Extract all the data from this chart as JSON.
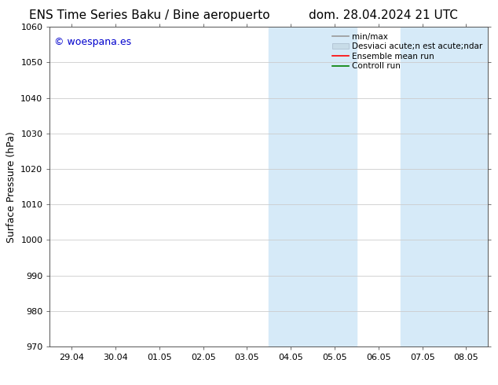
{
  "title_left": "ENS Time Series Baku / Bine aeropuerto",
  "title_right": "dom. 28.04.2024 21 UTC",
  "ylabel": "Surface Pressure (hPa)",
  "ylim": [
    970,
    1060
  ],
  "yticks": [
    970,
    980,
    990,
    1000,
    1010,
    1020,
    1030,
    1040,
    1050,
    1060
  ],
  "xtick_labels": [
    "29.04",
    "30.04",
    "01.05",
    "02.05",
    "03.05",
    "04.05",
    "05.05",
    "06.05",
    "07.05",
    "08.05"
  ],
  "xtick_positions": [
    0,
    1,
    2,
    3,
    4,
    5,
    6,
    7,
    8,
    9
  ],
  "shaded_bands": [
    {
      "xstart": 4.5,
      "xend": 5.5
    },
    {
      "xstart": 7.5,
      "xend": 8.5
    }
  ],
  "shaded_color": "#d6eaf8",
  "watermark_text": "© woespana.es",
  "watermark_color": "#0000cc",
  "watermark_fontsize": 9,
  "legend_labels": [
    "min/max",
    "Desviaci acute;n est acute;ndar",
    "Ensemble mean run",
    "Controll run"
  ],
  "legend_colors": [
    "#999999",
    "#c8dce8",
    "red",
    "green"
  ],
  "legend_lw": [
    1.2,
    8,
    1.2,
    1.2
  ],
  "bg_color": "#ffffff",
  "plot_bg_color": "#ffffff",
  "grid_color": "#cccccc",
  "title_fontsize": 11,
  "tick_fontsize": 8,
  "ylabel_fontsize": 9,
  "legend_fontsize": 7.5
}
